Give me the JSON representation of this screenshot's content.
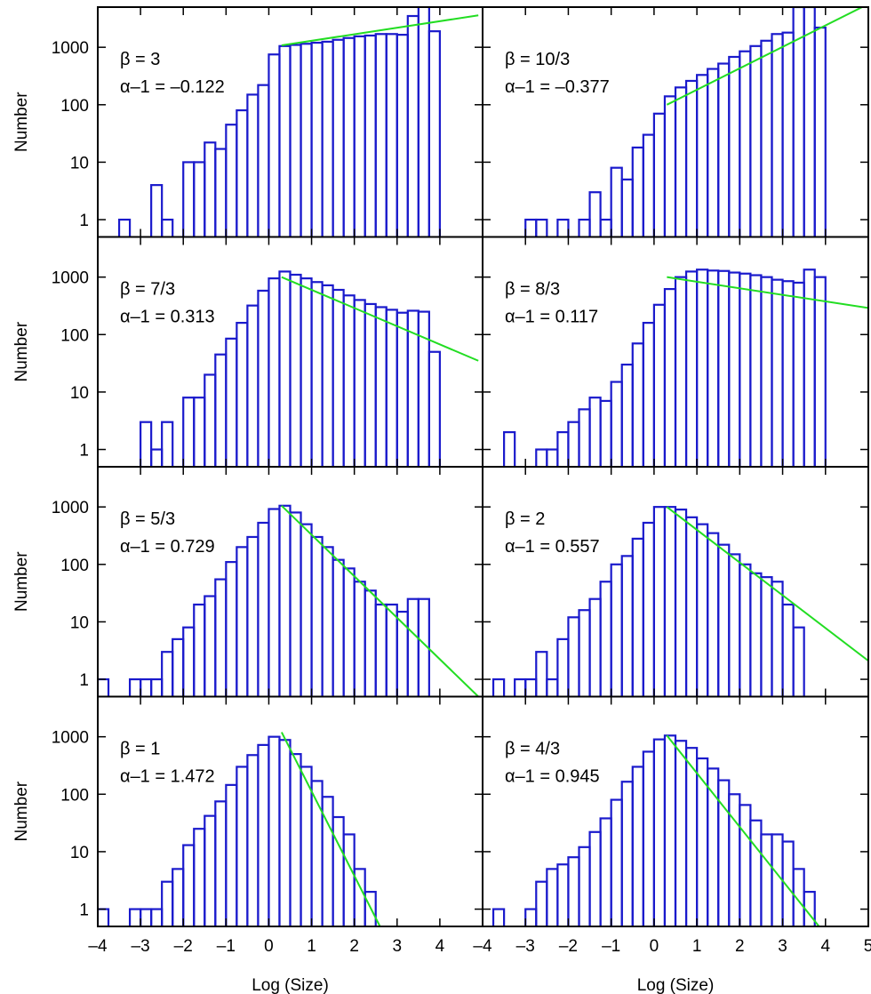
{
  "chart_data": {
    "layout": "4 rows x 2 columns, shared axes",
    "type": "bar",
    "xlabel": "Log (Size)",
    "ylabel": "Number",
    "xlim": [
      -4,
      5
    ],
    "x_ticks": [
      "–4",
      "–3",
      "–2",
      "–1",
      "0",
      "1",
      "2",
      "3",
      "4",
      "5"
    ],
    "y_scale": "log",
    "ylim": [
      0.5,
      5000
    ],
    "y_ticks": [
      "1",
      "10",
      "100",
      "1000"
    ],
    "bin_width": 0.25,
    "bar_color": "#1a1acc",
    "fit_line_color": "#22dd22",
    "panels": [
      {
        "beta_label": "β = 3",
        "alpha_label": "α–1 = –0.122",
        "bin_starts": [
          -3.5,
          -3.25,
          -3.0,
          -2.75,
          -2.5,
          -2.25,
          -2.0,
          -1.75,
          -1.5,
          -1.25,
          -1.0,
          -0.75,
          -0.5,
          -0.25,
          0.0,
          0.25,
          0.5,
          0.75,
          1.0,
          1.25,
          1.5,
          1.75,
          2.0,
          2.25,
          2.5,
          2.75,
          3.0,
          3.25,
          3.5,
          3.75
        ],
        "values": [
          1,
          0,
          0,
          4,
          1,
          0,
          10,
          10,
          22,
          17,
          45,
          80,
          150,
          220,
          750,
          1050,
          1100,
          1150,
          1200,
          1250,
          1350,
          1450,
          1550,
          1600,
          1700,
          1700,
          1650,
          3500,
          6000,
          1900
        ],
        "fit": {
          "x": [
            0.3,
            4.9
          ],
          "y": [
            1080,
            3600
          ]
        }
      },
      {
        "beta_label": "β = 10/3",
        "alpha_label": "α–1 = –0.377",
        "bin_starts": [
          -3.5,
          -3.25,
          -3.0,
          -2.75,
          -2.5,
          -2.25,
          -2.0,
          -1.75,
          -1.5,
          -1.25,
          -1.0,
          -0.75,
          -0.5,
          -0.25,
          0.0,
          0.25,
          0.5,
          0.75,
          1.0,
          1.25,
          1.5,
          1.75,
          2.0,
          2.25,
          2.5,
          2.75,
          3.0,
          3.25,
          3.5,
          3.75
        ],
        "values": [
          0,
          0,
          1,
          1,
          0,
          1,
          0,
          1,
          3,
          1,
          8,
          5,
          18,
          30,
          70,
          140,
          200,
          260,
          330,
          420,
          520,
          680,
          850,
          1050,
          1300,
          1700,
          1800,
          5000,
          5000,
          2200
        ],
        "fit": {
          "x": [
            0.3,
            4.9
          ],
          "y": [
            100,
            5200
          ]
        }
      },
      {
        "beta_label": "β = 7/3",
        "alpha_label": "α–1 = 0.313",
        "bin_starts": [
          -3.5,
          -3.25,
          -3.0,
          -2.75,
          -2.5,
          -2.25,
          -2.0,
          -1.75,
          -1.5,
          -1.25,
          -1.0,
          -0.75,
          -0.5,
          -0.25,
          0.0,
          0.25,
          0.5,
          0.75,
          1.0,
          1.25,
          1.5,
          1.75,
          2.0,
          2.25,
          2.5,
          2.75,
          3.0,
          3.25,
          3.5,
          3.75
        ],
        "values": [
          0,
          0,
          3,
          1,
          3,
          0,
          8,
          8,
          20,
          45,
          85,
          160,
          320,
          580,
          950,
          1250,
          1100,
          950,
          820,
          720,
          600,
          480,
          400,
          340,
          300,
          270,
          240,
          260,
          250,
          50
        ],
        "fit": {
          "x": [
            0.3,
            4.9
          ],
          "y": [
            1000,
            35
          ]
        }
      },
      {
        "beta_label": "β = 8/3",
        "alpha_label": "α–1 = 0.117",
        "bin_starts": [
          -3.5,
          -3.25,
          -3.0,
          -2.75,
          -2.5,
          -2.25,
          -2.0,
          -1.75,
          -1.5,
          -1.25,
          -1.0,
          -0.75,
          -0.5,
          -0.25,
          0.0,
          0.25,
          0.5,
          0.75,
          1.0,
          1.25,
          1.5,
          1.75,
          2.0,
          2.25,
          2.5,
          2.75,
          3.0,
          3.25,
          3.5,
          3.75
        ],
        "values": [
          2,
          0,
          0,
          1,
          1,
          2,
          3,
          5,
          8,
          7,
          15,
          30,
          70,
          160,
          330,
          620,
          1000,
          1250,
          1350,
          1300,
          1280,
          1200,
          1150,
          1080,
          1000,
          900,
          850,
          800,
          1350,
          1000
        ],
        "fit": {
          "x": [
            0.3,
            5.0
          ],
          "y": [
            1000,
            290
          ]
        }
      },
      {
        "beta_label": "β = 5/3",
        "alpha_label": "α–1 = 0.729",
        "bin_starts": [
          -4.0,
          -3.75,
          -3.5,
          -3.25,
          -3.0,
          -2.75,
          -2.5,
          -2.25,
          -2.0,
          -1.75,
          -1.5,
          -1.25,
          -1.0,
          -0.75,
          -0.5,
          -0.25,
          0.0,
          0.25,
          0.5,
          0.75,
          1.0,
          1.25,
          1.5,
          1.75,
          2.0,
          2.25,
          2.5,
          2.75,
          3.0,
          3.25,
          3.5
        ],
        "values": [
          1,
          0,
          0,
          1,
          1,
          1,
          3,
          5,
          8,
          20,
          28,
          55,
          110,
          200,
          300,
          530,
          920,
          1050,
          800,
          500,
          300,
          200,
          120,
          85,
          50,
          35,
          20,
          20,
          15,
          25,
          25
        ],
        "fit": {
          "x": [
            0.3,
            4.9
          ],
          "y": [
            1050,
            0.5
          ]
        }
      },
      {
        "beta_label": "β = 2",
        "alpha_label": "α–1 = 0.557",
        "bin_starts": [
          -3.75,
          -3.5,
          -3.25,
          -3.0,
          -2.75,
          -2.5,
          -2.25,
          -2.0,
          -1.75,
          -1.5,
          -1.25,
          -1.0,
          -0.75,
          -0.5,
          -0.25,
          0.0,
          0.25,
          0.5,
          0.75,
          1.0,
          1.25,
          1.5,
          1.75,
          2.0,
          2.25,
          2.5,
          2.75,
          3.0,
          3.25,
          3.5
        ],
        "values": [
          1,
          0,
          1,
          1,
          3,
          1,
          5,
          12,
          16,
          25,
          50,
          100,
          140,
          280,
          530,
          1000,
          1000,
          900,
          660,
          500,
          350,
          220,
          150,
          100,
          70,
          60,
          50,
          20,
          8,
          0
        ],
        "fit": {
          "x": [
            0.3,
            5.0
          ],
          "y": [
            1000,
            2.1
          ]
        }
      },
      {
        "beta_label": "β = 1",
        "alpha_label": "α–1 = 1.472",
        "bin_starts": [
          -4.0,
          -3.75,
          -3.5,
          -3.25,
          -3.0,
          -2.75,
          -2.5,
          -2.25,
          -2.0,
          -1.75,
          -1.5,
          -1.25,
          -1.0,
          -0.75,
          -0.5,
          -0.25,
          0.0,
          0.25,
          0.5,
          0.75,
          1.0,
          1.25,
          1.5,
          1.75,
          2.0,
          2.25
        ],
        "values": [
          1,
          0,
          0,
          1,
          1,
          1,
          3,
          5,
          13,
          25,
          42,
          75,
          145,
          300,
          480,
          720,
          1000,
          880,
          500,
          300,
          170,
          90,
          40,
          20,
          5,
          2
        ],
        "fit": {
          "x": [
            0.3,
            2.6
          ],
          "y": [
            1200,
            0.5
          ]
        }
      },
      {
        "beta_label": "β = 4/3",
        "alpha_label": "α–1 = 0.945",
        "bin_starts": [
          -3.75,
          -3.5,
          -3.25,
          -3.0,
          -2.75,
          -2.5,
          -2.25,
          -2.0,
          -1.75,
          -1.5,
          -1.25,
          -1.0,
          -0.75,
          -0.5,
          -0.25,
          0.0,
          0.25,
          0.5,
          0.75,
          1.0,
          1.25,
          1.5,
          1.75,
          2.0,
          2.25,
          2.5,
          2.75,
          3.0,
          3.25,
          3.5
        ],
        "values": [
          1,
          0,
          0,
          1,
          3,
          5,
          6,
          8,
          12,
          22,
          38,
          80,
          165,
          300,
          550,
          900,
          1050,
          850,
          640,
          420,
          280,
          175,
          100,
          65,
          35,
          20,
          20,
          15,
          5,
          2
        ],
        "fit": {
          "x": [
            0.3,
            3.85
          ],
          "y": [
            1050,
            0.5
          ]
        }
      }
    ]
  }
}
